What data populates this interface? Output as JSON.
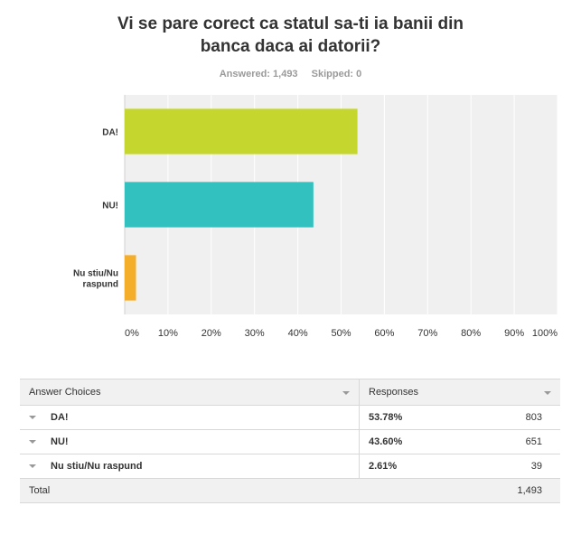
{
  "title_lines": [
    "Vi se pare corect ca statul sa-ti ia banii din",
    "banca daca ai datorii?"
  ],
  "stats": {
    "answered": "Answered: 1,493",
    "skipped": "Skipped: 0"
  },
  "chart_data": {
    "type": "bar",
    "orientation": "horizontal",
    "categories": [
      "DA!",
      "NU!",
      "Nu stiu/Nu raspund"
    ],
    "category_label_lines": [
      [
        "DA!"
      ],
      [
        "NU!"
      ],
      [
        "Nu stiu/Nu",
        "raspund"
      ]
    ],
    "values": [
      53.78,
      43.6,
      2.61
    ],
    "colors": [
      "#c5d72e",
      "#33c1bf",
      "#f5ae2a"
    ],
    "xlim": [
      0,
      100
    ],
    "xticks": [
      0,
      10,
      20,
      30,
      40,
      50,
      60,
      70,
      80,
      90,
      100
    ],
    "xtick_labels": [
      "0%",
      "10%",
      "20%",
      "30%",
      "40%",
      "50%",
      "60%",
      "70%",
      "80%",
      "90%",
      "100%"
    ],
    "grid": true
  },
  "table": {
    "headers": {
      "choices": "Answer Choices",
      "responses": "Responses"
    },
    "rows": [
      {
        "choice": "DA!",
        "pct": "53.78%",
        "count": "803"
      },
      {
        "choice": "NU!",
        "pct": "43.60%",
        "count": "651"
      },
      {
        "choice": "Nu stiu/Nu raspund",
        "pct": "2.61%",
        "count": "39"
      }
    ],
    "total": {
      "label": "Total",
      "count": "1,493"
    }
  }
}
